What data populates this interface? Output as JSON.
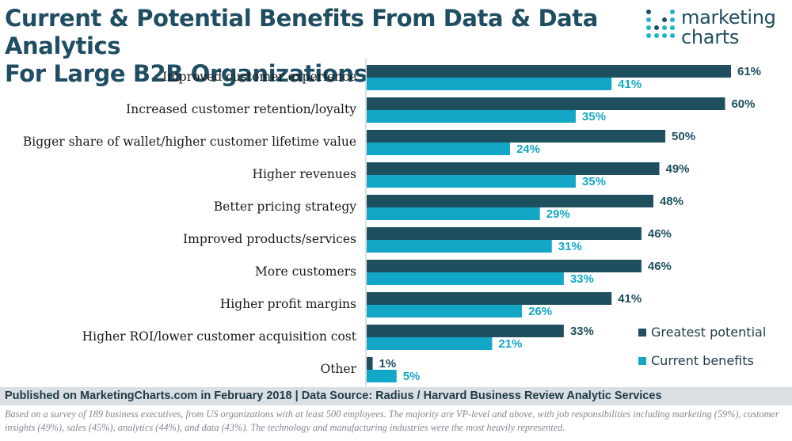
{
  "header": {
    "title_line1": "Current & Potential Benefits From Data & Data Analytics",
    "title_line2": "For Large B2B Organizations"
  },
  "logo": {
    "line1": "marketing",
    "line2": "charts",
    "color_dark": "#1f4e62",
    "color_accent": "#1fb3c8"
  },
  "chart_data": {
    "type": "bar",
    "orientation": "horizontal",
    "categories": [
      "Improved customer experience",
      "Increased customer retention/loyalty",
      "Bigger share of wallet/higher customer lifetime value",
      "Higher revenues",
      "Better pricing strategy",
      "Improved products/services",
      "More customers",
      "Higher profit margins",
      "Higher ROI/lower customer acquisition cost",
      "Other"
    ],
    "series": [
      {
        "name": "Greatest potential",
        "color": "#1d4f5f",
        "values": [
          61,
          60,
          50,
          49,
          48,
          46,
          46,
          41,
          33,
          1
        ]
      },
      {
        "name": "Current benefits",
        "color": "#13a7c7",
        "values": [
          41,
          35,
          24,
          35,
          29,
          31,
          33,
          26,
          21,
          5
        ]
      }
    ],
    "value_suffix": "%",
    "xlim": [
      0,
      61
    ],
    "grid": false,
    "legend_position": "bottom-right"
  },
  "footer": {
    "source": "Published on MarketingCharts.com in February 2018 | Data Source: Radius / Harvard Business Review Analytic Services"
  },
  "note": {
    "text": "Based on a survey of 189 business executives, from US organizations with at least 500 employees. The majority are VP-level and above, with job responsibilities including marketing (59%), customer insights (49%), sales (45%), analytics (44%), and data (43%). The technology and manufacturing industries were the most heavily represented."
  }
}
